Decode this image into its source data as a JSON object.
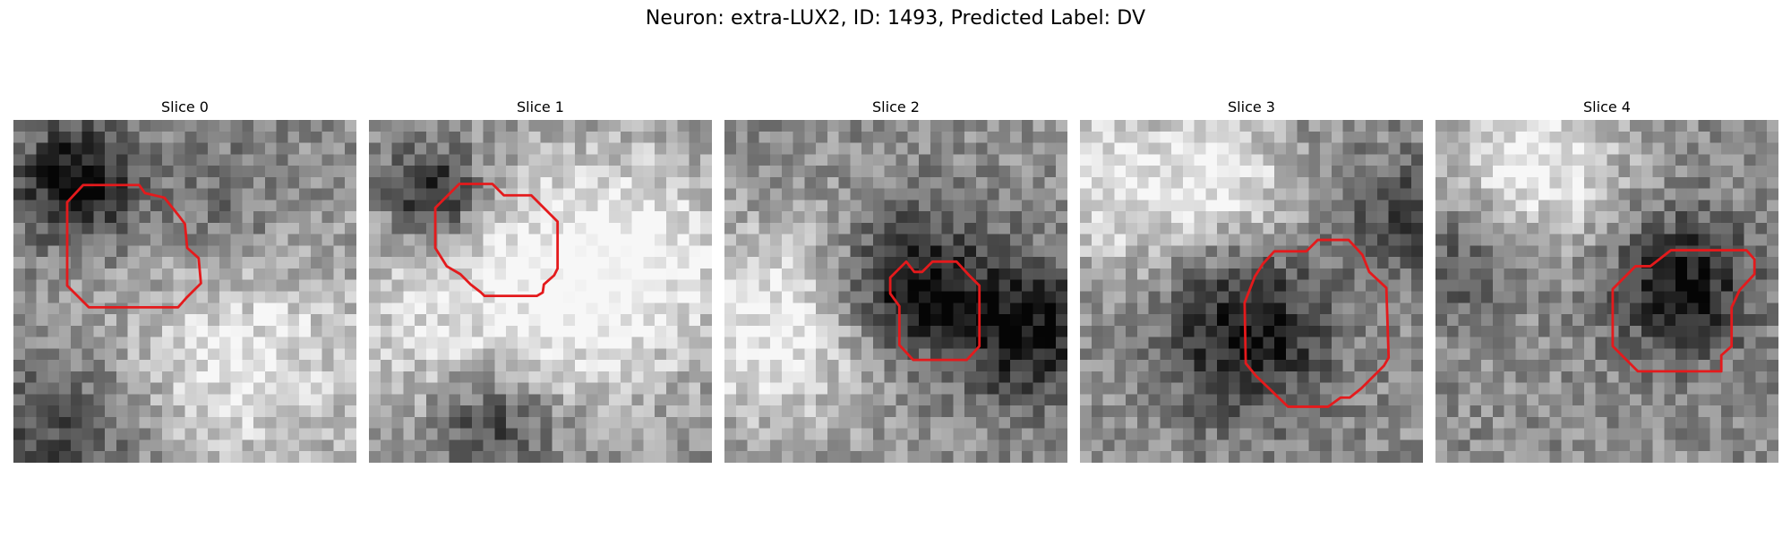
{
  "figure": {
    "title": "Neuron: extra-LUX2, ID: 1493, Predicted Label: DV"
  },
  "slices": [
    {
      "title": "Slice 0",
      "seed": 11,
      "dark": [
        [
          5,
          5,
          5,
          0.55
        ],
        [
          18,
          8,
          7,
          0.2
        ],
        [
          4,
          27,
          7,
          0.3
        ]
      ],
      "bright": [
        [
          20,
          20,
          12,
          0.35
        ]
      ]
    },
    {
      "title": "Slice 1",
      "seed": 23,
      "dark": [
        [
          5,
          6,
          4,
          0.55
        ],
        [
          10,
          26,
          6,
          0.45
        ]
      ],
      "bright": [
        [
          22,
          12,
          10,
          0.45
        ],
        [
          8,
          18,
          12,
          0.35
        ]
      ]
    },
    {
      "title": "Slice 2",
      "seed": 37,
      "dark": [
        [
          16,
          14,
          6,
          0.55
        ],
        [
          26,
          18,
          6,
          0.5
        ]
      ],
      "bright": [
        [
          4,
          18,
          9,
          0.4
        ]
      ]
    },
    {
      "title": "Slice 3",
      "seed": 41,
      "dark": [
        [
          14,
          18,
          7,
          0.5
        ],
        [
          28,
          8,
          5,
          0.3
        ]
      ],
      "bright": [
        [
          3,
          5,
          8,
          0.35
        ],
        [
          13,
          5,
          6,
          0.3
        ]
      ]
    },
    {
      "title": "Slice 4",
      "seed": 53,
      "dark": [
        [
          21,
          14,
          6,
          0.5
        ],
        [
          2,
          12,
          5,
          0.25
        ]
      ],
      "bright": [
        [
          8,
          3,
          8,
          0.4
        ]
      ]
    }
  ],
  "colors": {
    "contour": "#e41a1c"
  }
}
